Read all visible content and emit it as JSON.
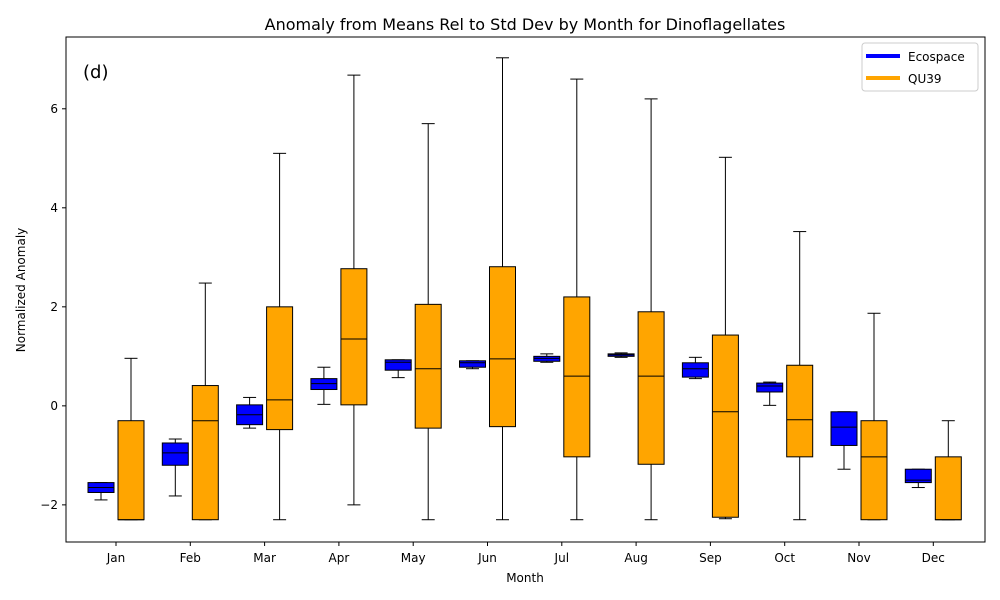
{
  "chart_data": {
    "type": "box",
    "title": "Anomaly from Means Rel to Std Dev by Month for Dinoflagellates",
    "panel_label": "(d)",
    "xlabel": "Month",
    "ylabel": "Normalized Anomaly",
    "ylim": [
      -2.75,
      7.45
    ],
    "yticks": [
      -2,
      0,
      2,
      4,
      6
    ],
    "grid": false,
    "legend": "top-right",
    "categories": [
      "Jan",
      "Feb",
      "Mar",
      "Apr",
      "May",
      "Jun",
      "Jul",
      "Aug",
      "Sep",
      "Oct",
      "Nov",
      "Dec"
    ],
    "series": [
      {
        "name": "Ecospace",
        "color": "#0000ff",
        "boxes": [
          {
            "whislo": -1.9,
            "q1": -1.75,
            "med": -1.65,
            "q3": -1.55,
            "whishi": -1.55
          },
          {
            "whislo": -1.82,
            "q1": -1.2,
            "med": -0.95,
            "q3": -0.75,
            "whishi": -0.67
          },
          {
            "whislo": -0.45,
            "q1": -0.38,
            "med": -0.18,
            "q3": 0.02,
            "whishi": 0.17
          },
          {
            "whislo": 0.03,
            "q1": 0.33,
            "med": 0.45,
            "q3": 0.55,
            "whishi": 0.78
          },
          {
            "whislo": 0.57,
            "q1": 0.72,
            "med": 0.88,
            "q3": 0.93,
            "whishi": 0.93
          },
          {
            "whislo": 0.75,
            "q1": 0.78,
            "med": 0.87,
            "q3": 0.91,
            "whishi": 0.91
          },
          {
            "whislo": 0.88,
            "q1": 0.9,
            "med": 0.96,
            "q3": 1.0,
            "whishi": 1.05
          },
          {
            "whislo": 0.98,
            "q1": 1.0,
            "med": 1.03,
            "q3": 1.05,
            "whishi": 1.07
          },
          {
            "whislo": 0.55,
            "q1": 0.58,
            "med": 0.75,
            "q3": 0.87,
            "whishi": 0.98
          },
          {
            "whislo": 0.01,
            "q1": 0.28,
            "med": 0.4,
            "q3": 0.46,
            "whishi": 0.48
          },
          {
            "whislo": -1.28,
            "q1": -0.8,
            "med": -0.43,
            "q3": -0.12,
            "whishi": -0.12
          },
          {
            "whislo": -1.65,
            "q1": -1.55,
            "med": -1.5,
            "q3": -1.28,
            "whishi": -1.28
          }
        ]
      },
      {
        "name": "QU39",
        "color": "#ffa500",
        "boxes": [
          {
            "whislo": -2.3,
            "q1": -2.3,
            "med": -2.3,
            "q3": -0.3,
            "whishi": 0.96
          },
          {
            "whislo": -2.3,
            "q1": -2.3,
            "med": -0.3,
            "q3": 0.41,
            "whishi": 2.48
          },
          {
            "whislo": -2.3,
            "q1": -0.48,
            "med": 0.12,
            "q3": 2.0,
            "whishi": 5.1
          },
          {
            "whislo": -2.0,
            "q1": 0.02,
            "med": 1.35,
            "q3": 2.77,
            "whishi": 6.68
          },
          {
            "whislo": -2.3,
            "q1": -0.45,
            "med": 0.75,
            "q3": 2.05,
            "whishi": 5.7
          },
          {
            "whislo": -2.3,
            "q1": -0.42,
            "med": 0.95,
            "q3": 2.81,
            "whishi": 7.03
          },
          {
            "whislo": -2.3,
            "q1": -1.03,
            "med": 0.6,
            "q3": 2.2,
            "whishi": 6.6
          },
          {
            "whislo": -2.3,
            "q1": -1.18,
            "med": 0.6,
            "q3": 1.9,
            "whishi": 6.2
          },
          {
            "whislo": -2.28,
            "q1": -2.25,
            "med": -0.12,
            "q3": 1.43,
            "whishi": 5.02
          },
          {
            "whislo": -2.3,
            "q1": -1.03,
            "med": -0.28,
            "q3": 0.82,
            "whishi": 3.52
          },
          {
            "whislo": -2.3,
            "q1": -2.3,
            "med": -1.03,
            "q3": -0.3,
            "whishi": 1.87
          },
          {
            "whislo": -2.3,
            "q1": -2.3,
            "med": -2.3,
            "q3": -1.03,
            "whishi": -0.3
          }
        ]
      }
    ]
  }
}
